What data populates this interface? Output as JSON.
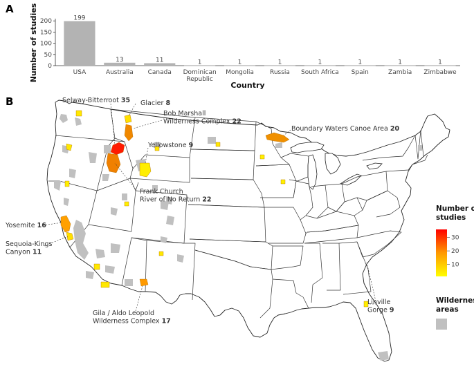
{
  "panels": {
    "a": "A",
    "b": "B"
  },
  "chart_data": [
    {
      "type": "bar",
      "categories": [
        "USA",
        "Australia",
        "Canada",
        "Dominican\nRepublic",
        "Mongolia",
        "Russia",
        "South Africa",
        "Spain",
        "Zambia",
        "Zimbabwe"
      ],
      "values": [
        199,
        13,
        11,
        1,
        1,
        1,
        1,
        1,
        1,
        1
      ],
      "data_labels": [
        "199",
        "13",
        "11",
        "1",
        "1",
        "1",
        "1",
        "1",
        "1",
        "1"
      ],
      "xlabel": "Country",
      "ylabel": "Number of studies",
      "ylim": [
        0,
        210
      ],
      "yticks": [
        0,
        50,
        100,
        150,
        200
      ],
      "bar_color": "#b3b3b3",
      "grid": false
    },
    {
      "type": "map",
      "region": "contiguous United States",
      "color_scale": {
        "title": "Number of studies",
        "min_color": "#ffff00",
        "max_color": "#ff0000",
        "ticks": [
          10,
          20,
          30
        ]
      },
      "background_layer": {
        "title": "Wilderness areas",
        "color": "#c0c0c0"
      },
      "annotations": [
        {
          "name": "Selway-Bitterroot",
          "count": "35"
        },
        {
          "name": "Glacier",
          "count": "8"
        },
        {
          "name": "Bob Marshall\nWilderness Complex",
          "count": "22"
        },
        {
          "name": "Boundary Waters Canoe Area",
          "count": "20"
        },
        {
          "name": "Yellowstone",
          "count": "9"
        },
        {
          "name": "Frank Church\nRiver of No Return",
          "count": "22"
        },
        {
          "name": "Yosemite",
          "count": "16"
        },
        {
          "name": "Sequoia-Kings\nCanyon",
          "count": "11"
        },
        {
          "name": "Gila / Aldo Leopold\nWilderness Complex",
          "count": "17"
        },
        {
          "name": "Linville\nGorge",
          "count": "9"
        }
      ]
    }
  ]
}
